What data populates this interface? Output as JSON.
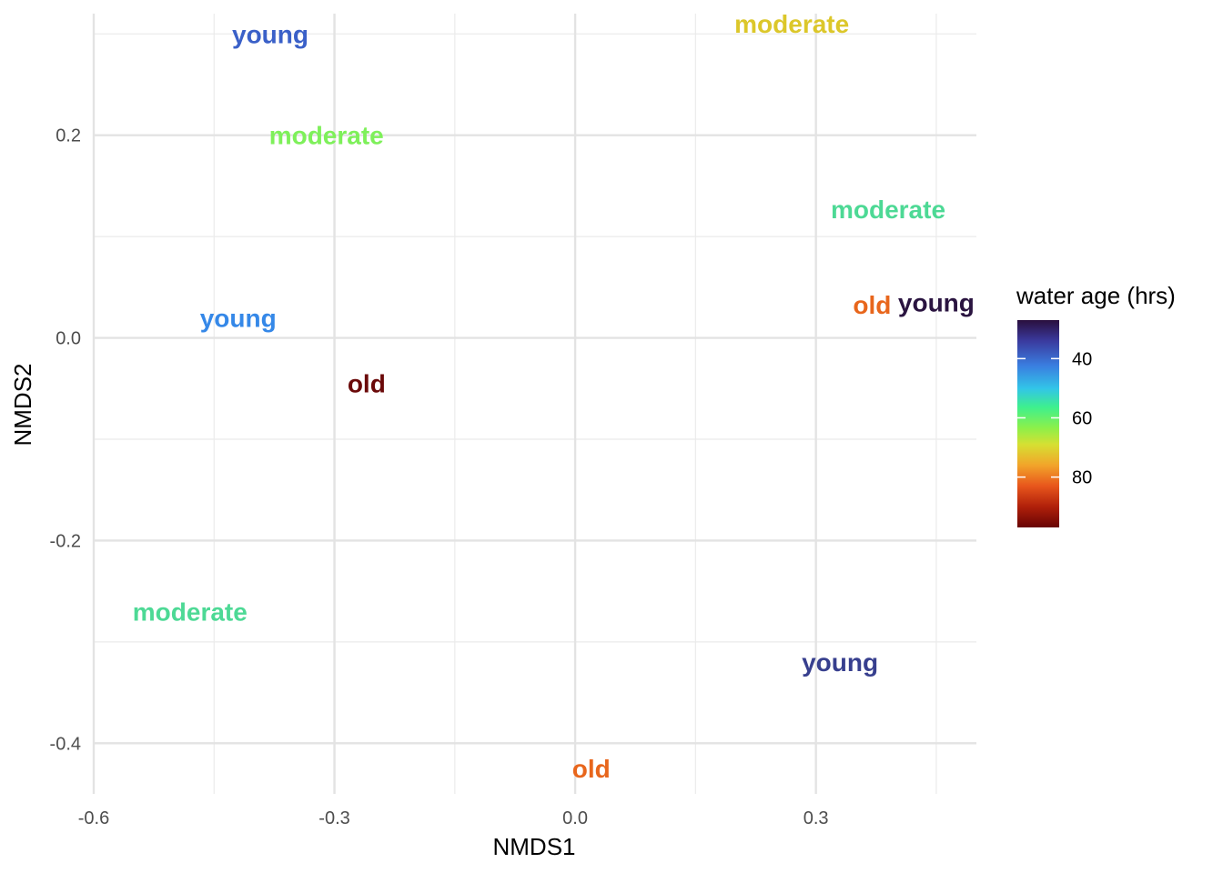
{
  "chart_data": {
    "type": "scatter",
    "title": "",
    "xlabel": "NMDS1",
    "ylabel": "NMDS2",
    "xlim": [
      -0.6,
      0.5
    ],
    "ylim": [
      -0.45,
      0.32
    ],
    "x_ticks": [
      -0.6,
      -0.3,
      0.0,
      0.3
    ],
    "x_tick_labels": [
      "-0.6",
      "-0.3",
      "0.0",
      "0.3"
    ],
    "y_ticks": [
      -0.4,
      -0.2,
      0.0,
      0.2
    ],
    "y_tick_labels": [
      "-0.4",
      "-0.2",
      "0.0",
      "0.2"
    ],
    "grid": true,
    "legend": {
      "title": "water age (hrs)",
      "placement": "right",
      "range": [
        27,
        97
      ],
      "ticks": [
        40,
        60,
        80
      ],
      "tick_labels": [
        "40",
        "60",
        "80"
      ]
    },
    "points": [
      {
        "x": -0.38,
        "y": 0.3,
        "label": "young",
        "water_age": 37,
        "color": "#3a60c8"
      },
      {
        "x": 0.27,
        "y": 0.31,
        "label": "moderate",
        "water_age": 64,
        "color": "#dcc72a"
      },
      {
        "x": -0.31,
        "y": 0.2,
        "label": "moderate",
        "water_age": 58,
        "color": "#7ef05a"
      },
      {
        "x": 0.39,
        "y": 0.127,
        "label": "moderate",
        "water_age": 52,
        "color": "#4dd995"
      },
      {
        "x": 0.37,
        "y": 0.033,
        "label": "old",
        "water_age": 80,
        "color": "#e8661c"
      },
      {
        "x": 0.45,
        "y": 0.035,
        "label": "young",
        "water_age": 28,
        "color": "#2a1440"
      },
      {
        "x": -0.42,
        "y": 0.02,
        "label": "young",
        "water_age": 41,
        "color": "#3588e8"
      },
      {
        "x": -0.26,
        "y": -0.045,
        "label": "old",
        "water_age": 96,
        "color": "#6b0a0a"
      },
      {
        "x": -0.48,
        "y": -0.27,
        "label": "moderate",
        "water_age": 52,
        "color": "#4dd995"
      },
      {
        "x": 0.33,
        "y": -0.32,
        "label": "young",
        "water_age": 32,
        "color": "#373f8e"
      },
      {
        "x": 0.02,
        "y": -0.425,
        "label": "old",
        "water_age": 80,
        "color": "#e8661c"
      }
    ]
  }
}
